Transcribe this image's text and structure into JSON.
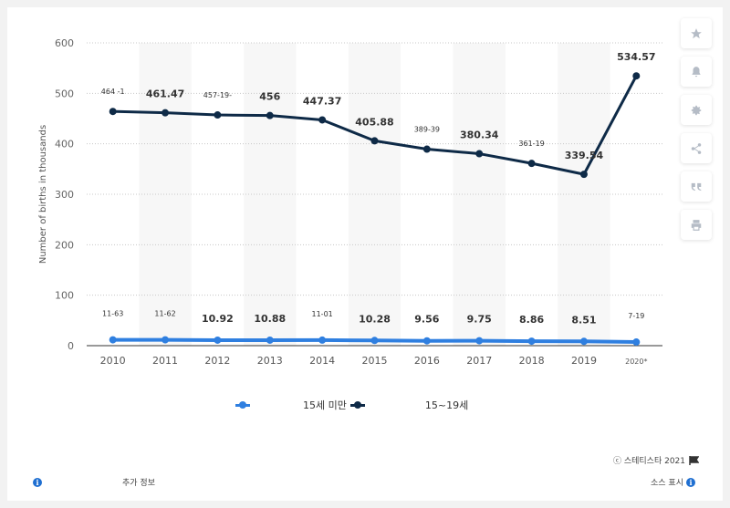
{
  "chart_data": {
    "type": "line",
    "categories": [
      "2010",
      "2011",
      "2012",
      "2013",
      "2014",
      "2015",
      "2016",
      "2017",
      "2018",
      "2019",
      "2020*"
    ],
    "ylabel": "Number of births in thousands",
    "ylim": [
      0,
      600
    ],
    "yticks": [
      "0",
      "100",
      "200",
      "300",
      "400",
      "500",
      "600"
    ],
    "grid": true,
    "legend_position": "bottom",
    "series": [
      {
        "name": "15세 미만",
        "color": "#2f7fe0",
        "values": [
          11.63,
          11.62,
          10.92,
          10.88,
          11.01,
          10.28,
          9.56,
          9.75,
          8.86,
          8.51,
          7.19
        ],
        "labels": [
          "11-63",
          "11-62",
          "10.92",
          "10.88",
          "11-01",
          "10.28",
          "9.56",
          "9.75",
          "8.86",
          "8.51",
          "7-19"
        ]
      },
      {
        "name": "15~19세",
        "color": "#0e2a47",
        "values": [
          464.1,
          461.47,
          457.19,
          456,
          447.37,
          405.88,
          389.39,
          380.34,
          361.19,
          339.54,
          534.57
        ],
        "labels": [
          "464 -1",
          "461.47",
          "457-19-",
          "456",
          "447.37",
          "405.88",
          "389-39",
          "380.34",
          "361-19",
          "339.54",
          "534.57"
        ]
      }
    ]
  },
  "toolbar": {
    "icons": [
      "star-icon",
      "bell-icon",
      "gear-icon",
      "share-icon",
      "quote-icon",
      "print-icon"
    ]
  },
  "footer": {
    "copyright": "ⓒ 스테티스타 2021",
    "additional_info": "추가 정보",
    "show_source": "소스 표시"
  }
}
